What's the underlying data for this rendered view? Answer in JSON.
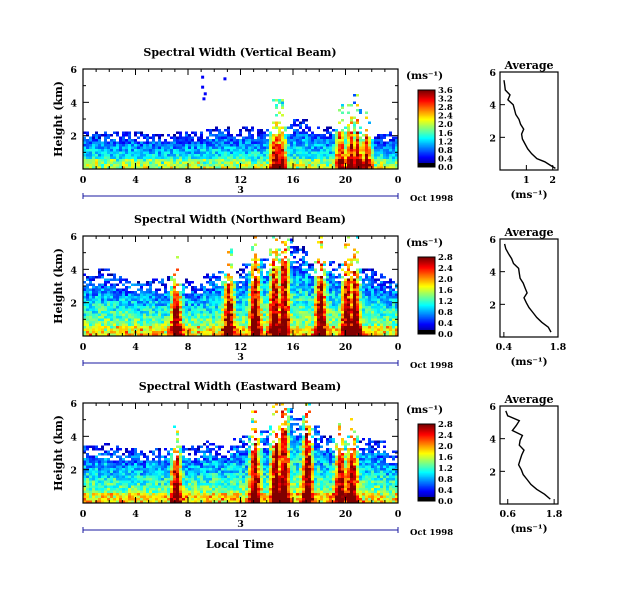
{
  "figure": {
    "x_axis_title": "Local Time",
    "date_label": "Oct 1998",
    "day_label": "3",
    "colorbar_unit": "(ms⁻¹)",
    "avg_title": "Average",
    "avg_unit": "(ms⁻¹)",
    "y_label": "Height (km)"
  },
  "chart_data": [
    {
      "type": "heatmap",
      "title": "Spectral Width (Vertical Beam)",
      "xlabel": "Local Time",
      "ylabel": "Height (km)",
      "xlim": [
        0,
        24
      ],
      "ylim": [
        0,
        6
      ],
      "x_ticks": [
        "0",
        "4",
        "8",
        "12",
        "16",
        "20",
        "0"
      ],
      "y_ticks": [
        "2",
        "4",
        "6"
      ],
      "colorbar": {
        "unit": "(ms⁻¹)",
        "range": [
          0,
          3.6
        ],
        "ticks": [
          "0.0",
          "0.4",
          "0.8",
          "1.2",
          "1.6",
          "2.0",
          "2.4",
          "2.8",
          "3.2",
          "3.6"
        ]
      },
      "echo_top_km": [
        2.2,
        2.1,
        2.1,
        2.2,
        2.1,
        2.0,
        2.0,
        2.2,
        2.1,
        2.3,
        2.4,
        2.3,
        2.4,
        2.3,
        2.7,
        2.6,
        2.9,
        2.5,
        2.4,
        2.6,
        2.9,
        2.2,
        2.0,
        2.1
      ],
      "high_width_times_h": [
        14.5,
        15.0,
        19.5,
        20.3,
        20.8,
        21.5
      ],
      "sparse_echoes": [
        {
          "t": 9.0,
          "h": 5.0
        },
        {
          "t": 9.2,
          "h": 4.6
        },
        {
          "t": 9.1,
          "h": 4.3
        },
        {
          "t": 10.7,
          "h": 5.5
        },
        {
          "t": 9.0,
          "h": 5.6
        }
      ],
      "average_profile": {
        "xlim": [
          0,
          2.2
        ],
        "x_ticks": [
          "1",
          "2"
        ],
        "y_ticks": [
          "2",
          "4",
          "6"
        ],
        "height_km": [
          0.1,
          0.3,
          0.5,
          0.7,
          1.0,
          1.3,
          1.6,
          1.9,
          2.2,
          2.5,
          2.8,
          3.1,
          3.4,
          3.7,
          4.0,
          4.3,
          4.6,
          4.9,
          5.2,
          5.5
        ],
        "width_ms": [
          2.1,
          1.9,
          1.7,
          1.4,
          1.2,
          1.05,
          0.95,
          0.85,
          0.82,
          0.9,
          0.78,
          0.72,
          0.6,
          0.55,
          0.5,
          0.3,
          0.38,
          0.2,
          0.18,
          0.15
        ]
      }
    },
    {
      "type": "heatmap",
      "title": "Spectral Width (Northward Beam)",
      "xlabel": "Local Time",
      "ylabel": "Height (km)",
      "xlim": [
        0,
        24
      ],
      "ylim": [
        0,
        6
      ],
      "x_ticks": [
        "0",
        "4",
        "8",
        "12",
        "16",
        "20",
        "0"
      ],
      "y_ticks": [
        "2",
        "4",
        "6"
      ],
      "colorbar": {
        "unit": "(ms⁻¹)",
        "range": [
          0,
          2.8
        ],
        "ticks": [
          "0.0",
          "0.4",
          "0.8",
          "1.2",
          "1.6",
          "2.0",
          "2.4",
          "2.8"
        ]
      },
      "echo_top_km": [
        3.6,
        3.9,
        3.6,
        3.4,
        3.2,
        3.3,
        3.5,
        3.3,
        3.2,
        3.6,
        3.8,
        3.9,
        4.3,
        4.6,
        5.2,
        5.8,
        5.3,
        4.6,
        4.4,
        4.2,
        4.5,
        4.0,
        3.8,
        3.4
      ],
      "high_width_times_h": [
        7.0,
        11.0,
        13.0,
        14.5,
        15.2,
        18.0,
        20.0,
        20.6
      ],
      "sparse_echoes": [],
      "average_profile": {
        "xlim": [
          0.3,
          1.8
        ],
        "x_ticks": [
          "0.4",
          "1.8"
        ],
        "y_ticks": [
          "2",
          "4",
          "6"
        ],
        "height_km": [
          0.3,
          0.6,
          0.9,
          1.2,
          1.5,
          1.8,
          2.1,
          2.4,
          2.7,
          3.0,
          3.3,
          3.6,
          3.9,
          4.2,
          4.5,
          4.8,
          5.1,
          5.4,
          5.7
        ],
        "width_ms": [
          1.62,
          1.55,
          1.38,
          1.25,
          1.15,
          1.05,
          0.98,
          0.92,
          1.0,
          0.95,
          0.9,
          0.82,
          0.8,
          0.78,
          0.65,
          0.6,
          0.52,
          0.45,
          0.42
        ]
      }
    },
    {
      "type": "heatmap",
      "title": "Spectral Width (Eastward Beam)",
      "xlabel": "Local Time",
      "ylabel": "Height (km)",
      "xlim": [
        0,
        24
      ],
      "ylim": [
        0,
        6
      ],
      "x_ticks": [
        "0",
        "4",
        "8",
        "12",
        "16",
        "20",
        "0"
      ],
      "y_ticks": [
        "2",
        "4",
        "6"
      ],
      "colorbar": {
        "unit": "(ms⁻¹)",
        "range": [
          0,
          2.8
        ],
        "ticks": [
          "0.0",
          "0.4",
          "0.8",
          "1.2",
          "1.6",
          "2.0",
          "2.4",
          "2.8"
        ]
      },
      "echo_top_km": [
        3.4,
        3.5,
        3.3,
        3.2,
        3.1,
        3.2,
        3.2,
        3.3,
        3.3,
        3.6,
        3.4,
        3.8,
        4.0,
        4.2,
        4.5,
        5.6,
        5.2,
        4.6,
        4.0,
        3.6,
        3.9,
        3.8,
        3.6,
        3.0
      ],
      "high_width_times_h": [
        7.0,
        13.0,
        14.6,
        15.2,
        17.0,
        19.5,
        20.4
      ],
      "sparse_echoes": [],
      "average_profile": {
        "xlim": [
          0.4,
          1.9
        ],
        "x_ticks": [
          "0.6",
          "1.8"
        ],
        "y_ticks": [
          "2",
          "4",
          "6"
        ],
        "height_km": [
          0.3,
          0.6,
          0.9,
          1.2,
          1.5,
          1.8,
          2.1,
          2.4,
          2.7,
          3.0,
          3.3,
          3.6,
          3.9,
          4.2,
          4.5,
          4.8,
          5.1,
          5.4,
          5.7
        ],
        "width_ms": [
          1.7,
          1.55,
          1.35,
          1.2,
          1.1,
          1.0,
          0.95,
          0.88,
          0.92,
          0.96,
          1.02,
          0.9,
          0.92,
          0.98,
          0.72,
          0.82,
          0.9,
          0.6,
          0.55
        ]
      }
    }
  ]
}
